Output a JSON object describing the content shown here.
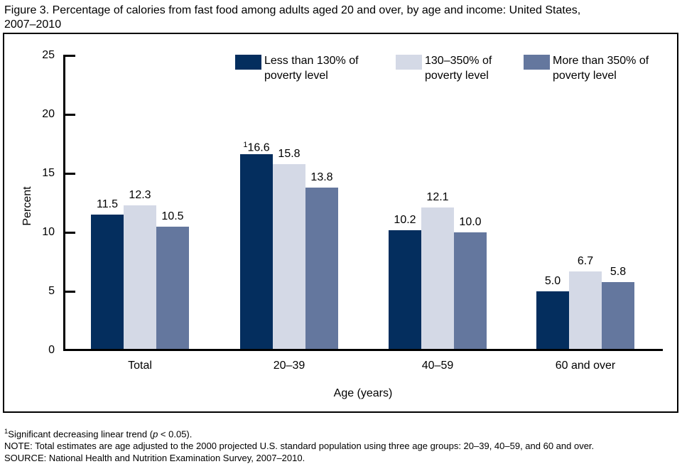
{
  "figure": {
    "title_line1": "Figure 3. Percentage of calories from fast food among adults aged 20 and over, by age and income: United States,",
    "title_line2": "2007–2010"
  },
  "chart_data": {
    "type": "bar",
    "title": "Figure 3. Percentage of calories from fast food among adults aged 20 and over, by age and income: United States, 2007–2010",
    "categories": [
      "Total",
      "20–39",
      "40–59",
      "60 and over"
    ],
    "series": [
      {
        "name": "Less than 130% of poverty level",
        "legend_lines": [
          "Less than 130% of",
          "poverty level"
        ],
        "color": "#042e5e",
        "values": [
          11.5,
          16.6,
          10.2,
          5.0
        ],
        "value_labels": [
          "11.5",
          "16.6",
          "10.2",
          "5.0"
        ],
        "label_sups": [
          "",
          "1",
          "",
          ""
        ]
      },
      {
        "name": "130–350% of poverty level",
        "legend_lines": [
          "130–350% of",
          "poverty level"
        ],
        "color": "#d4d9e6",
        "values": [
          12.3,
          15.8,
          12.1,
          6.7
        ],
        "value_labels": [
          "12.3",
          "15.8",
          "12.1",
          "6.7"
        ],
        "label_sups": [
          "",
          "",
          "",
          ""
        ]
      },
      {
        "name": "More than 350% of poverty level",
        "legend_lines": [
          "More than 350% of",
          "poverty level"
        ],
        "color": "#64779e",
        "values": [
          10.5,
          13.8,
          10.0,
          5.8
        ],
        "value_labels": [
          "10.5",
          "13.8",
          "10.0",
          "5.8"
        ],
        "label_sups": [
          "",
          "",
          "",
          ""
        ]
      }
    ],
    "xlabel": "Age (years)",
    "ylabel": "Percent",
    "ylim": [
      0,
      25
    ],
    "yticks": [
      0,
      5,
      10,
      15,
      20,
      25
    ],
    "grid": false,
    "legend_position": "top-inside"
  },
  "footnotes": [
    {
      "sup": "1",
      "pre": "Significant decreasing linear trend (",
      "italic": "p",
      "post": " < 0.05)."
    },
    {
      "sup": "",
      "pre": "NOTE: Total estimates are age adjusted to the 2000 projected U.S. standard population using three age groups: 20–39, 40–59, and 60 and over.",
      "italic": "",
      "post": ""
    },
    {
      "sup": "",
      "pre": "SOURCE: National Health and Nutrition Examination Survey, 2007–2010.",
      "italic": "",
      "post": ""
    }
  ]
}
